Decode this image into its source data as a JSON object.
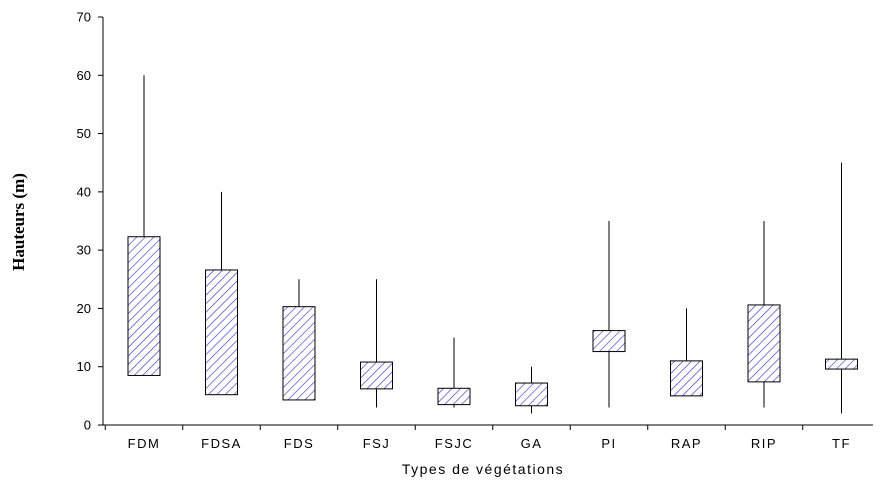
{
  "chart_data": {
    "type": "boxplot",
    "xlabel": "Types de végétations",
    "ylabel": "Hauteurs (m)",
    "ylim": [
      0,
      70
    ],
    "yticks": [
      0,
      10,
      20,
      30,
      40,
      50,
      60,
      70
    ],
    "grid": false,
    "box_color": "#3a3ad0",
    "categories": [
      "FDM",
      "FDSA",
      "FDS",
      "FSJ",
      "FSJC",
      "GA",
      "PI",
      "RAP",
      "RIP",
      "TF"
    ],
    "boxes": [
      {
        "name": "FDM",
        "min": 8.5,
        "q1": 8.5,
        "q3": 32.3,
        "max": 60
      },
      {
        "name": "FDSA",
        "min": 5.2,
        "q1": 5.2,
        "q3": 26.6,
        "max": 40
      },
      {
        "name": "FDS",
        "min": 4.3,
        "q1": 4.3,
        "q3": 20.3,
        "max": 25
      },
      {
        "name": "FSJ",
        "min": 3,
        "q1": 6.2,
        "q3": 10.8,
        "max": 25
      },
      {
        "name": "FSJC",
        "min": 3,
        "q1": 3.5,
        "q3": 6.3,
        "max": 15
      },
      {
        "name": "GA",
        "min": 2,
        "q1": 3.3,
        "q3": 7.2,
        "max": 10
      },
      {
        "name": "PI",
        "min": 3,
        "q1": 12.6,
        "q3": 16.2,
        "max": 35
      },
      {
        "name": "RAP",
        "min": 5,
        "q1": 5,
        "q3": 11,
        "max": 20
      },
      {
        "name": "RIP",
        "min": 3,
        "q1": 7.4,
        "q3": 20.6,
        "max": 35
      },
      {
        "name": "TF",
        "min": 2,
        "q1": 9.6,
        "q3": 11.3,
        "max": 45
      }
    ]
  }
}
